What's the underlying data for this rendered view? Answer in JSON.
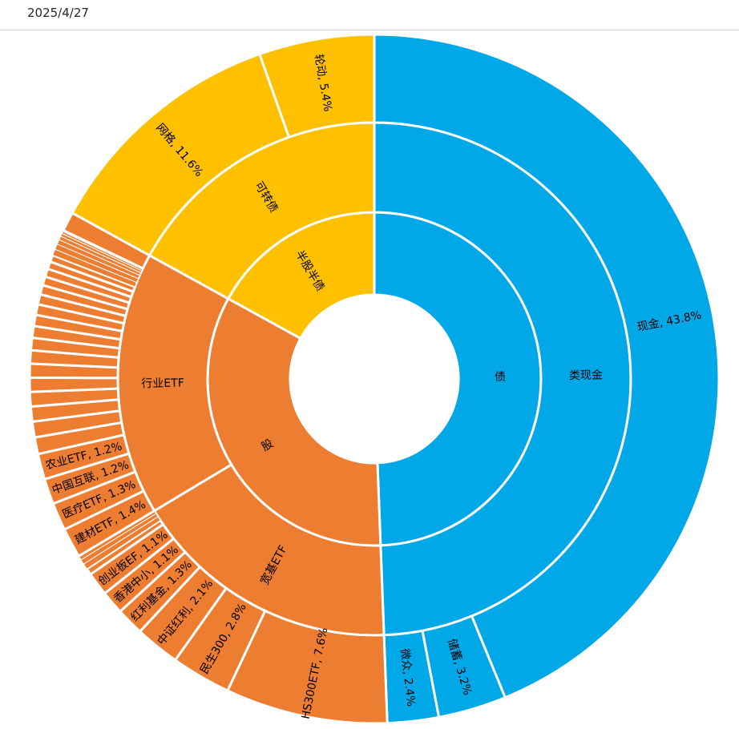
{
  "header": {
    "date": "2025/4/27"
  },
  "chart_data": {
    "type": "sunburst",
    "unit": "percent",
    "start_angle": "12-oclock",
    "direction": "clockwise",
    "palette": {
      "bond_blue": "#00A8E8",
      "stock_orange": "#ED7D31",
      "convertible_yellow": "#FFC000"
    },
    "rings": [
      {
        "id": "inner",
        "segments": [
          {
            "label": "债",
            "value": 49.4,
            "color": "#00A8E8"
          },
          {
            "label": "股",
            "value": 33.6,
            "color": "#ED7D31"
          },
          {
            "label": "半股半债",
            "value": 17.0,
            "color": "#FFC000"
          }
        ]
      },
      {
        "id": "middle",
        "segments": [
          {
            "label": "类现金",
            "value": 49.4,
            "color": "#00A8E8"
          },
          {
            "label": "宽基ETF",
            "value": 17.0,
            "color": "#ED7D31"
          },
          {
            "label": "行业ETF",
            "value": 16.6,
            "color": "#ED7D31"
          },
          {
            "label": "可转债",
            "value": 17.0,
            "color": "#FFC000"
          }
        ]
      },
      {
        "id": "outer",
        "segments": [
          {
            "label": "现金, 43.8%",
            "value": 43.8,
            "color": "#00A8E8"
          },
          {
            "label": "储蓄, 3.2%",
            "value": 3.2,
            "color": "#00A8E8"
          },
          {
            "label": "微众, 2.4%",
            "value": 2.4,
            "color": "#00A8E8"
          },
          {
            "label": "HS300ETF, 7.6%",
            "value": 7.6,
            "color": "#ED7D31"
          },
          {
            "label": "民生300, 2.8%",
            "value": 2.8,
            "color": "#ED7D31"
          },
          {
            "label": "中证红利, 2.1%",
            "value": 2.1,
            "color": "#ED7D31"
          },
          {
            "label": "红利基金, 1.3%",
            "value": 1.3,
            "color": "#ED7D31"
          },
          {
            "label": "香港中小, 1.1%",
            "value": 1.1,
            "color": "#ED7D31"
          },
          {
            "label": "创业板EF, 1.1%",
            "value": 1.1,
            "color": "#ED7D31"
          },
          {
            "label": "",
            "value": 0.3,
            "color": "#ED7D31"
          },
          {
            "label": "",
            "value": 0.27,
            "color": "#ED7D31"
          },
          {
            "label": "",
            "value": 0.23,
            "color": "#ED7D31"
          },
          {
            "label": "",
            "value": 0.2,
            "color": "#ED7D31"
          },
          {
            "label": "建材ETF, 1.4%",
            "value": 1.4,
            "color": "#ED7D31"
          },
          {
            "label": "医疗ETF, 1.3%",
            "value": 1.3,
            "color": "#ED7D31"
          },
          {
            "label": "中国互联, 1.2%",
            "value": 1.2,
            "color": "#ED7D31"
          },
          {
            "label": "农业ETF, 1.2%",
            "value": 1.2,
            "color": "#ED7D31"
          },
          {
            "label": "",
            "value": 0.78,
            "color": "#ED7D31"
          },
          {
            "label": "",
            "value": 0.74,
            "color": "#ED7D31"
          },
          {
            "label": "",
            "value": 0.7,
            "color": "#ED7D31"
          },
          {
            "label": "",
            "value": 0.68,
            "color": "#ED7D31"
          },
          {
            "label": "",
            "value": 0.66,
            "color": "#ED7D31"
          },
          {
            "label": "",
            "value": 0.65,
            "color": "#ED7D31"
          },
          {
            "label": "",
            "value": 0.62,
            "color": "#ED7D31"
          },
          {
            "label": "",
            "value": 0.58,
            "color": "#ED7D31"
          },
          {
            "label": "",
            "value": 0.55,
            "color": "#ED7D31"
          },
          {
            "label": "",
            "value": 0.52,
            "color": "#ED7D31"
          },
          {
            "label": "",
            "value": 0.5,
            "color": "#ED7D31"
          },
          {
            "label": "",
            "value": 0.47,
            "color": "#ED7D31"
          },
          {
            "label": "",
            "value": 0.44,
            "color": "#ED7D31"
          },
          {
            "label": "",
            "value": 0.41,
            "color": "#ED7D31"
          },
          {
            "label": "",
            "value": 0.38,
            "color": "#ED7D31"
          },
          {
            "label": "",
            "value": 0.35,
            "color": "#ED7D31"
          },
          {
            "label": "",
            "value": 0.32,
            "color": "#ED7D31"
          },
          {
            "label": "",
            "value": 0.29,
            "color": "#ED7D31"
          },
          {
            "label": "",
            "value": 0.26,
            "color": "#ED7D31"
          },
          {
            "label": "",
            "value": 0.22,
            "color": "#ED7D31"
          },
          {
            "label": "",
            "value": 0.18,
            "color": "#ED7D31"
          },
          {
            "label": "",
            "value": 0.14,
            "color": "#ED7D31"
          },
          {
            "label": "",
            "value": 0.1,
            "color": "#ED7D31"
          },
          {
            "label": "",
            "value": 0.06,
            "color": "#ED7D31"
          },
          {
            "label": "",
            "value": 0.9,
            "color": "#ED7D31"
          },
          {
            "label": "网格, 11.6%",
            "value": 11.6,
            "color": "#FFC000"
          },
          {
            "label": "轮动, 5.4%",
            "value": 5.4,
            "color": "#FFC000"
          }
        ]
      }
    ]
  }
}
